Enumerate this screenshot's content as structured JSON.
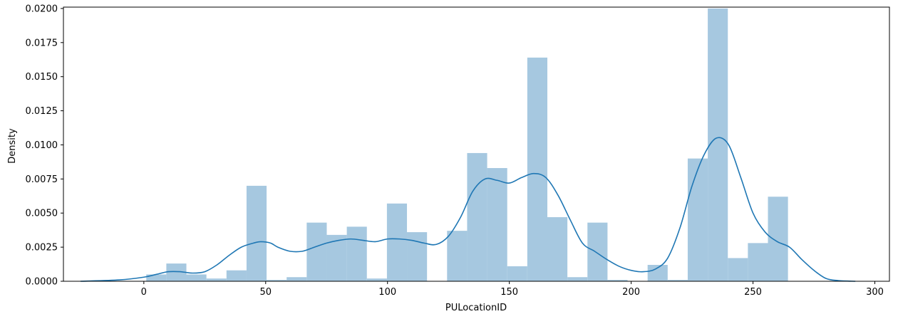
{
  "chart_data": {
    "type": "bar",
    "title": "",
    "xlabel": "PULocationID",
    "ylabel": "Density",
    "xlim": [
      -33,
      306
    ],
    "ylim": [
      0,
      0.0201
    ],
    "x_ticks": [
      "0",
      "50",
      "100",
      "150",
      "200",
      "250",
      "300"
    ],
    "x_tick_values": [
      0,
      50,
      100,
      150,
      200,
      250,
      300
    ],
    "y_ticks": [
      "0.0000",
      "0.0025",
      "0.0050",
      "0.0075",
      "0.0100",
      "0.0125",
      "0.0150",
      "0.0175",
      "0.0200"
    ],
    "y_tick_values": [
      0,
      0.0025,
      0.005,
      0.0075,
      0.01,
      0.0125,
      0.015,
      0.0175,
      0.02
    ],
    "grid": false,
    "series": [
      {
        "kind": "histogram",
        "color": "#a6c8e0",
        "bin_start": 1.0,
        "bin_width": 8.23,
        "values": [
          0.0005,
          0.0013,
          0.0005,
          0.0002,
          0.0008,
          0.007,
          0.0001,
          0.0003,
          0.0043,
          0.0034,
          0.004,
          0.0002,
          0.0057,
          0.0036,
          0.0,
          0.0037,
          0.0094,
          0.0083,
          0.0011,
          0.0164,
          0.0047,
          0.0003,
          0.0043,
          0.0001,
          0.0,
          0.0012,
          0.0001,
          0.009,
          0.02,
          0.0017,
          0.0028,
          0.0062
        ]
      },
      {
        "kind": "kde",
        "color": "#1f77b4",
        "x": [
          -26,
          -10,
          0,
          5,
          10,
          15,
          20,
          25,
          30,
          35,
          40,
          45,
          48,
          52,
          55,
          60,
          65,
          70,
          75,
          80,
          85,
          90,
          95,
          100,
          105,
          110,
          115,
          120,
          125,
          130,
          135,
          140,
          145,
          150,
          155,
          160,
          165,
          170,
          175,
          180,
          185,
          190,
          195,
          200,
          205,
          210,
          215,
          220,
          225,
          230,
          235,
          240,
          245,
          250,
          255,
          260,
          265,
          270,
          275,
          280,
          285,
          292
        ],
        "y": [
          0.0,
          0.0001,
          0.0003,
          0.0005,
          0.0007,
          0.0007,
          0.0006,
          0.0007,
          0.0012,
          0.0019,
          0.0025,
          0.0028,
          0.0029,
          0.0028,
          0.0025,
          0.0022,
          0.0022,
          0.0025,
          0.0028,
          0.003,
          0.0031,
          0.003,
          0.0029,
          0.0031,
          0.0031,
          0.003,
          0.0028,
          0.0027,
          0.0033,
          0.0047,
          0.0066,
          0.0075,
          0.0074,
          0.0072,
          0.0076,
          0.0079,
          0.0076,
          0.0063,
          0.0045,
          0.0028,
          0.0022,
          0.0016,
          0.0011,
          0.0008,
          0.0007,
          0.0009,
          0.0017,
          0.0039,
          0.007,
          0.0093,
          0.0105,
          0.01,
          0.0076,
          0.005,
          0.0036,
          0.0029,
          0.0025,
          0.0016,
          0.0008,
          0.0002,
          5e-05,
          0.0
        ]
      }
    ]
  }
}
